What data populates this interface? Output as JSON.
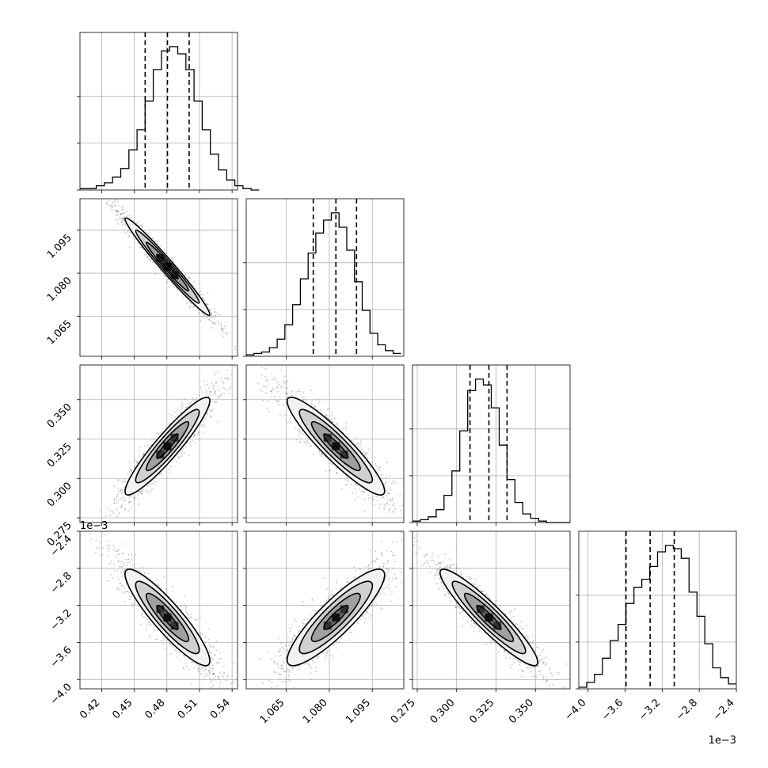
{
  "chart_data": {
    "type": "corner",
    "grid": true,
    "parameters": [
      {
        "range": [
          0.4,
          0.545
        ],
        "ticks": [
          "0.42",
          "0.45",
          "0.48",
          "0.51",
          "0.54"
        ],
        "tick_values": [
          0.42,
          0.45,
          0.48,
          0.51,
          0.54
        ],
        "quantiles": [
          0.46,
          0.4805,
          0.5005
        ],
        "label": ""
      },
      {
        "range": [
          1.051,
          1.106
        ],
        "ticks": [
          "1.065",
          "1.080",
          "1.095"
        ],
        "tick_values": [
          1.065,
          1.08,
          1.095
        ],
        "quantiles": [
          1.0744,
          1.0823,
          1.0895
        ],
        "label": ""
      },
      {
        "range": [
          0.272,
          0.372
        ],
        "ticks": [
          "0.275",
          "0.300",
          "0.325",
          "0.350"
        ],
        "tick_values": [
          0.275,
          0.3,
          0.325,
          0.35
        ],
        "quantiles": [
          0.3085,
          0.3205,
          0.332
        ],
        "label": ""
      },
      {
        "range": [
          -4.1,
          -2.4
        ],
        "ticks": [
          "−4.0",
          "−3.6",
          "−3.2",
          "−2.8",
          "−2.4"
        ],
        "tick_values": [
          -4.0,
          -3.6,
          -3.2,
          -2.8,
          -2.4
        ],
        "quantiles": [
          -3.59,
          -3.33,
          -3.07
        ],
        "label": "",
        "offset_text": "1e−3"
      }
    ],
    "histograms": [
      {
        "param": 0,
        "bins_start": 0.4,
        "bin_width": 0.0075,
        "counts": [
          1,
          1,
          3,
          5,
          9,
          15,
          28,
          42,
          62,
          84,
          97,
          100,
          95,
          84,
          62,
          42,
          25,
          14,
          7,
          3,
          1,
          0
        ]
      },
      {
        "param": 1,
        "bins_start": 1.051,
        "bin_width": 0.0027,
        "counts": [
          1,
          2,
          3,
          6,
          12,
          22,
          36,
          54,
          72,
          86,
          95,
          100,
          90,
          74,
          52,
          32,
          16,
          8,
          4,
          2
        ]
      },
      {
        "param": 2,
        "bins_start": 0.272,
        "bin_width": 0.005,
        "counts": [
          1,
          2,
          4,
          9,
          19,
          36,
          64,
          92,
          100,
          96,
          80,
          54,
          30,
          14,
          6,
          3,
          1,
          0,
          0,
          0
        ]
      },
      {
        "param": 3,
        "bins_start": -4.1,
        "bin_width": 0.085,
        "counts": [
          1,
          4,
          9,
          19,
          30,
          40,
          53,
          63,
          68,
          76,
          85,
          89,
          87,
          81,
          60,
          45,
          28,
          13,
          7,
          3
        ]
      }
    ],
    "pairs": [
      {
        "x": 0,
        "y": 1,
        "center": [
          0.4805,
          1.0823
        ],
        "sigma": [
          0.0195,
          0.0085
        ],
        "rho": -0.98
      },
      {
        "x": 0,
        "y": 2,
        "center": [
          0.4805,
          0.3205
        ],
        "sigma": [
          0.0195,
          0.0155
        ],
        "rho": 0.93
      },
      {
        "x": 1,
        "y": 2,
        "center": [
          1.0823,
          0.3205
        ],
        "sigma": [
          0.0085,
          0.0155
        ],
        "rho": -0.92
      },
      {
        "x": 0,
        "y": 3,
        "center": [
          0.4805,
          -3.33
        ],
        "sigma": [
          0.0195,
          0.26
        ],
        "rho": -0.9
      },
      {
        "x": 1,
        "y": 3,
        "center": [
          1.0823,
          -3.33
        ],
        "sigma": [
          0.0085,
          0.26
        ],
        "rho": 0.88
      },
      {
        "x": 2,
        "y": 3,
        "center": [
          0.3205,
          -3.33
        ],
        "sigma": [
          0.0155,
          0.26
        ],
        "rho": -0.93
      }
    ],
    "contour_levels_sigma": [
      0.5,
      1.0,
      1.5,
      2.0
    ],
    "colors": {
      "contour": "#000000",
      "points": "#7f7f7f",
      "grid": "#b0b0b0",
      "quantile_line": "#000000"
    }
  }
}
